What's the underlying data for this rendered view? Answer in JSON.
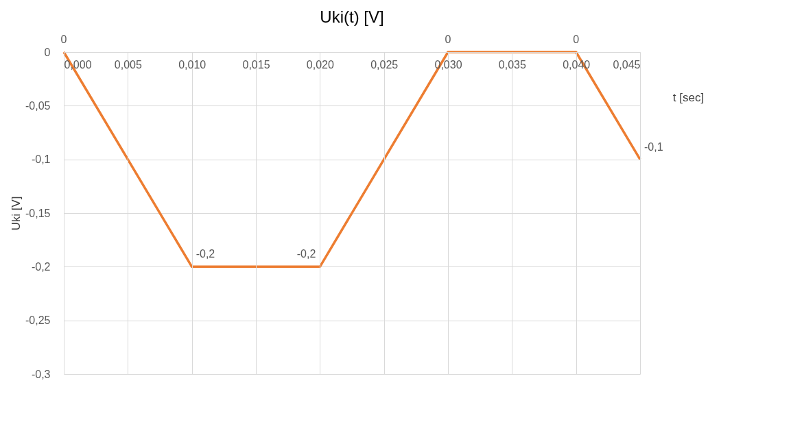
{
  "chart_data": {
    "type": "line",
    "title": "Uki(t) [V]",
    "xlabel": "t [sec]",
    "ylabel": "Uki [V]",
    "x": [
      0,
      0.01,
      0.02,
      0.03,
      0.04,
      0.045
    ],
    "series": [
      {
        "color": "#ed7d31",
        "values": [
          0,
          -0.2,
          -0.2,
          0,
          0,
          -0.1
        ],
        "value_labels": [
          "0",
          "-0,2",
          "-0,2",
          "0",
          "0",
          "-0,1"
        ]
      }
    ],
    "xlim": [
      0,
      0.045
    ],
    "xticks": [
      {
        "value": 0,
        "label": "0,000"
      },
      {
        "value": 0.005,
        "label": "0,005"
      },
      {
        "value": 0.01,
        "label": "0,010"
      },
      {
        "value": 0.015,
        "label": "0,015"
      },
      {
        "value": 0.02,
        "label": "0,020"
      },
      {
        "value": 0.025,
        "label": "0,025"
      },
      {
        "value": 0.03,
        "label": "0,030"
      },
      {
        "value": 0.035,
        "label": "0,035"
      },
      {
        "value": 0.04,
        "label": "0,040"
      },
      {
        "value": 0.045,
        "label": "0,045"
      }
    ],
    "ylim": [
      -0.3,
      0
    ],
    "yticks": [
      0,
      {
        "value": -0.05,
        "label": "-0,05"
      },
      {
        "value": -0.1,
        "label": "-0,1"
      },
      {
        "value": -0.15,
        "label": "-0,15"
      },
      {
        "value": -0.2,
        "label": "-0,2"
      },
      {
        "value": -0.25,
        "label": "-0,25"
      },
      {
        "value": -0.3,
        "label": "-0,3"
      }
    ],
    "grid": true,
    "marker": "none",
    "line_style": "solid"
  }
}
